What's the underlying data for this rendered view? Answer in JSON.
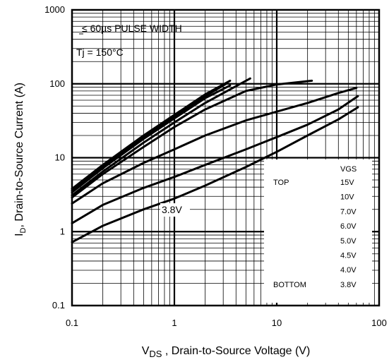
{
  "chart_data": {
    "type": "line",
    "x_scale": "log",
    "y_scale": "log",
    "xlim": [
      0.1,
      100
    ],
    "ylim": [
      0.1,
      1000
    ],
    "grid": true,
    "x_ticks": [
      "0.1",
      "1",
      "10",
      "100"
    ],
    "y_ticks": [
      "1000",
      "100",
      "10",
      "1",
      "0.1"
    ],
    "xlabel": {
      "main": "V",
      "sub": "DS",
      "rest": " , Drain-to-Source Voltage (V)"
    },
    "ylabel": {
      "main": "I",
      "sub": "D",
      "rest": ", Drain-to-Source Current (A)"
    },
    "annotations": {
      "pulse": "≤ 60µs PULSE WIDTH",
      "temp": "Tj = 150°C",
      "curve_label": "3.8V"
    },
    "legend": {
      "placement": "bottom-right",
      "header": "VGS",
      "top_label": "TOP",
      "bottom_label": "BOTTOM",
      "entries": [
        "15V",
        "10V",
        "7.0V",
        "6.0V",
        "5.0V",
        "4.5V",
        "4.0V",
        "3.8V"
      ]
    },
    "series": [
      {
        "x": [
          0.1,
          0.2,
          0.5,
          1,
          2,
          3.5
        ],
        "y": [
          3.8,
          8,
          20,
          38,
          72,
          110
        ]
      },
      {
        "x": [
          0.1,
          0.2,
          0.5,
          1,
          2,
          3.2
        ],
        "y": [
          3.6,
          7.6,
          19,
          36,
          68,
          100
        ]
      },
      {
        "x": [
          0.1,
          0.2,
          0.5,
          1,
          2,
          3.5
        ],
        "y": [
          3.4,
          7.2,
          18,
          34,
          64,
          95
        ]
      },
      {
        "x": [
          0.1,
          0.2,
          0.5,
          1,
          2,
          5.5
        ],
        "y": [
          3.1,
          6.5,
          16,
          30,
          55,
          118
        ]
      },
      {
        "x": [
          0.1,
          0.2,
          0.5,
          1,
          2,
          5,
          10,
          22
        ],
        "y": [
          2.9,
          6,
          14,
          26,
          45,
          80,
          98,
          110
        ]
      },
      {
        "x": [
          0.1,
          0.2,
          0.5,
          1,
          2,
          5,
          10,
          20,
          40,
          60
        ],
        "y": [
          2.4,
          4.5,
          8.5,
          13,
          20,
          32,
          42,
          55,
          75,
          88
        ]
      },
      {
        "x": [
          0.1,
          0.2,
          0.5,
          1,
          2,
          5,
          10,
          20,
          40,
          62
        ],
        "y": [
          1.3,
          2.3,
          3.9,
          5.5,
          8,
          13,
          19,
          28,
          45,
          68
        ]
      },
      {
        "x": [
          0.1,
          0.2,
          0.5,
          1,
          2,
          5,
          10,
          20,
          40,
          62
        ],
        "y": [
          0.72,
          1.2,
          2.0,
          2.8,
          4.2,
          7.5,
          12,
          20,
          33,
          48
        ]
      }
    ]
  }
}
